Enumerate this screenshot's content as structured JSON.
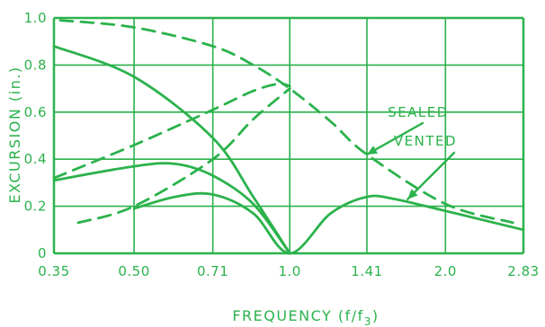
{
  "chart_data": {
    "type": "line",
    "title": "",
    "xlabel": "FREQUENCY (f/f",
    "xlabel_sub": "3",
    "xlabel_close": ")",
    "ylabel": "EXCURSION (in.)",
    "x_ticks": [
      "0.35",
      "0.50",
      "0.71",
      "1.0",
      "1.41",
      "2.0",
      "2.83"
    ],
    "x_tick_values": [
      0.35,
      0.5,
      0.71,
      1.0,
      1.41,
      2.0,
      2.83
    ],
    "y_ticks": [
      "0",
      "0.2",
      "0.4",
      "0.6",
      "0.8",
      "1.0"
    ],
    "y_tick_values": [
      0,
      0.2,
      0.4,
      0.6,
      0.8,
      1.0
    ],
    "xlim": [
      0.35,
      2.83
    ],
    "ylim": [
      0,
      1.0
    ],
    "x_scale": "log",
    "grid": true,
    "colors": {
      "ink": "#2bb24c",
      "background": "#ffffff"
    },
    "series": [
      {
        "style": "dashed",
        "points": [
          [
            0.36,
            0.99
          ],
          [
            0.5,
            0.96
          ],
          [
            0.71,
            0.88
          ],
          [
            0.85,
            0.8
          ],
          [
            1.0,
            0.7
          ],
          [
            1.2,
            0.56
          ],
          [
            1.41,
            0.42
          ],
          [
            2.0,
            0.21
          ],
          [
            2.7,
            0.13
          ]
        ]
      },
      {
        "style": "dashed",
        "points": [
          [
            0.39,
            0.13
          ],
          [
            0.5,
            0.2
          ],
          [
            0.71,
            0.4
          ],
          [
            0.85,
            0.57
          ],
          [
            1.0,
            0.7
          ]
        ]
      },
      {
        "style": "dashed",
        "points": [
          [
            0.35,
            0.32
          ],
          [
            0.5,
            0.46
          ],
          [
            0.71,
            0.61
          ],
          [
            0.85,
            0.69
          ],
          [
            0.95,
            0.72
          ],
          [
            1.0,
            0.71
          ]
        ]
      },
      {
        "style": "solid",
        "points": [
          [
            0.35,
            0.88
          ],
          [
            0.5,
            0.75
          ],
          [
            0.71,
            0.49
          ],
          [
            0.85,
            0.24
          ],
          [
            1.0,
            0.0
          ]
        ]
      },
      {
        "style": "solid",
        "points": [
          [
            0.35,
            0.31
          ],
          [
            0.5,
            0.37
          ],
          [
            0.6,
            0.38
          ],
          [
            0.71,
            0.33
          ],
          [
            0.85,
            0.21
          ],
          [
            1.0,
            0.0
          ]
        ]
      },
      {
        "style": "solid",
        "points": [
          [
            0.5,
            0.19
          ],
          [
            0.6,
            0.24
          ],
          [
            0.71,
            0.25
          ],
          [
            0.85,
            0.17
          ],
          [
            1.0,
            0.0
          ],
          [
            1.2,
            0.17
          ],
          [
            1.41,
            0.24
          ],
          [
            1.6,
            0.23
          ],
          [
            2.0,
            0.18
          ],
          [
            2.83,
            0.1
          ]
        ]
      }
    ],
    "annotations": [
      {
        "text": "SEALED",
        "target": [
          1.41,
          0.42
        ]
      },
      {
        "text": "VENTED",
        "target": [
          1.69,
          0.23
        ]
      }
    ]
  }
}
